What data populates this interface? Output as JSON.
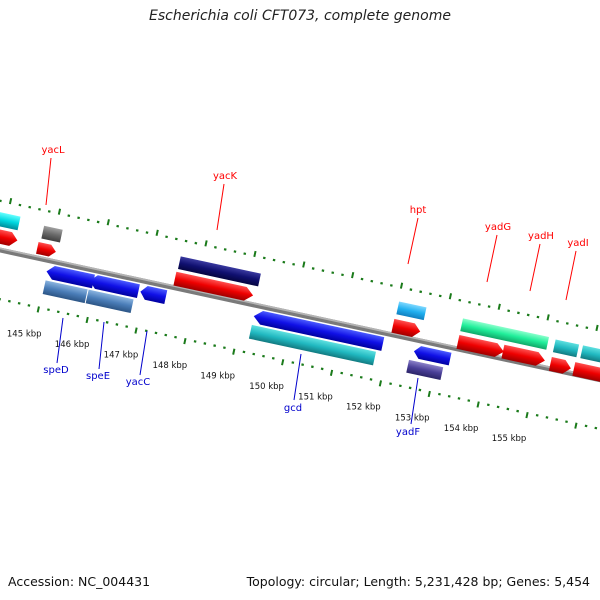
{
  "title": "Escherichia coli CFT073, complete genome",
  "footer": {
    "accession": "Accession: NC_004431",
    "summary": "Topology: circular; Length: 5,231,428 bp; Genes: 5,454"
  },
  "ruler": {
    "labels": [
      "145 kbp",
      "146 kbp",
      "147 kbp",
      "148 kbp",
      "149 kbp",
      "150 kbp",
      "151 kbp",
      "152 kbp",
      "153 kbp",
      "154 kbp",
      "155 kbp"
    ]
  },
  "genes": {
    "forward": [
      {
        "label": "yacL",
        "color": "#ff0000"
      },
      {
        "label": "yacK",
        "color": "#ff0000"
      },
      {
        "label": "hpt",
        "color": "#ff0000"
      },
      {
        "label": "yadG",
        "color": "#ff0000"
      },
      {
        "label": "yadH",
        "color": "#ff0000"
      },
      {
        "label": "yadI",
        "color": "#ff0000"
      }
    ],
    "reverse": [
      {
        "label": "speD",
        "color": "#0000cc"
      },
      {
        "label": "speE",
        "color": "#0000cc"
      },
      {
        "label": "yacC",
        "color": "#0000cc"
      },
      {
        "label": "gcd",
        "color": "#0000cc"
      },
      {
        "label": "yadF",
        "color": "#0000cc"
      }
    ]
  },
  "colors": {
    "backbone": "#8c8c8c",
    "tick": "#1a7a1a",
    "forward_label": "#ff0000",
    "reverse_label": "#0000cc"
  }
}
